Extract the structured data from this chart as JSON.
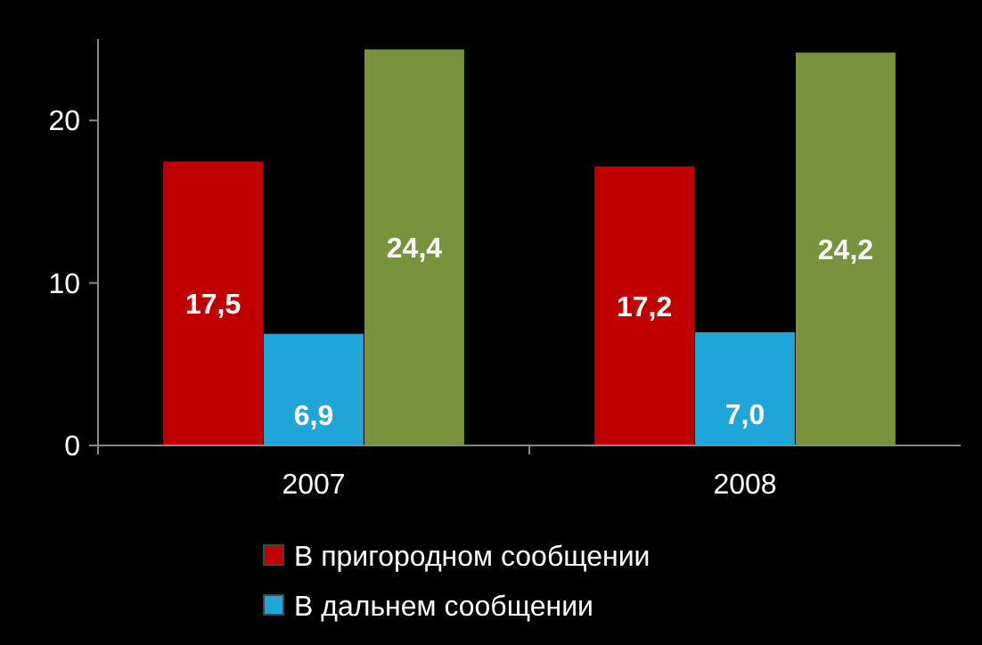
{
  "chart_data": {
    "type": "bar",
    "categories": [
      "2007",
      "2008"
    ],
    "series": [
      {
        "name": "В пригородном сообщении",
        "color": "#c00000",
        "values": [
          17.5,
          17.2
        ],
        "value_labels": [
          "17,5",
          "17,2"
        ]
      },
      {
        "name": "В дальнем сообщении",
        "color": "#1fa6d8",
        "values": [
          6.9,
          7.0
        ],
        "value_labels": [
          "6,9",
          "7,0"
        ]
      },
      {
        "color": "#77933c",
        "values": [
          24.4,
          24.2
        ],
        "value_labels": [
          "24,4",
          "24,2"
        ]
      }
    ],
    "ylim": [
      0,
      25
    ],
    "yticks": [
      0,
      10,
      20
    ],
    "grid": false,
    "legend": "bottom"
  }
}
